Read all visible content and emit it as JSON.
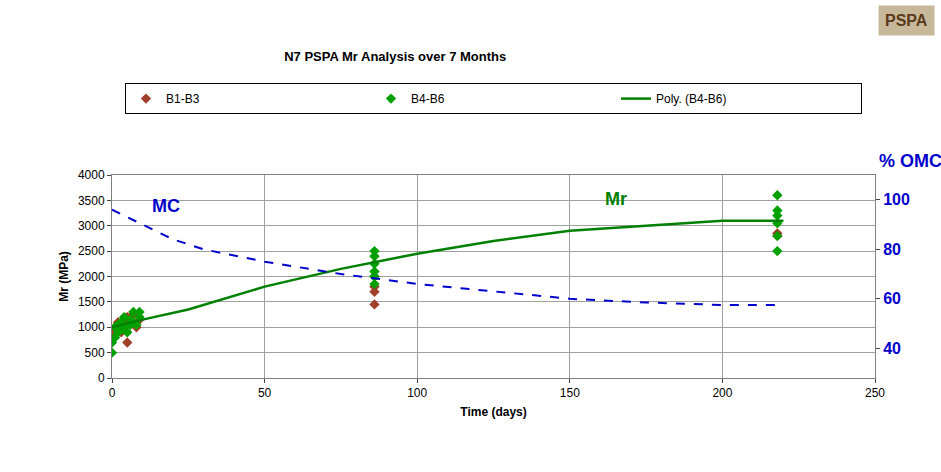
{
  "chart_data": {
    "type": "scatter",
    "title": "N7 PSPA Mr Analysis over 7 Months",
    "badge": "PSPA",
    "x_label": "Time (days)",
    "y_label": "Mr (MPa)",
    "y2_label": "% OMC",
    "xlim": [
      0,
      250
    ],
    "xticks": [
      0,
      50,
      100,
      150,
      200,
      250
    ],
    "ylim": [
      0,
      4000
    ],
    "yticks": [
      0,
      500,
      1000,
      1500,
      2000,
      2500,
      3000,
      3500,
      4000
    ],
    "y2lim": [
      28,
      110
    ],
    "y2ticks": [
      40,
      60,
      80,
      100
    ],
    "grid": true,
    "legend": "top",
    "series": [
      {
        "name": "B1-B3",
        "type": "scatter",
        "marker": "diamond",
        "color": "#a0402a",
        "x": [
          0,
          0,
          1,
          1,
          2,
          3,
          4,
          5,
          5,
          6,
          7,
          8,
          9,
          86,
          86,
          86,
          86,
          218,
          218
        ],
        "values": [
          800,
          900,
          950,
          1000,
          1100,
          900,
          1150,
          1200,
          700,
          1100,
          1250,
          1000,
          1150,
          1450,
          1700,
          1800,
          2000,
          2850,
          2800
        ]
      },
      {
        "name": "B4-B6",
        "type": "scatter",
        "marker": "diamond",
        "color": "#00a000",
        "x": [
          0,
          0,
          1,
          1,
          2,
          2,
          3,
          3,
          4,
          4,
          5,
          6,
          6,
          7,
          7,
          8,
          9,
          9,
          86,
          86,
          86,
          86,
          86,
          86,
          218,
          218,
          218,
          218,
          218,
          218
        ],
        "values": [
          500,
          700,
          800,
          1000,
          900,
          1050,
          950,
          1100,
          1000,
          1200,
          900,
          1050,
          1150,
          1100,
          1300,
          1050,
          1200,
          1300,
          1850,
          2000,
          2100,
          2250,
          2400,
          2500,
          2500,
          2800,
          3050,
          3200,
          3300,
          3600
        ]
      },
      {
        "name": "Poly. (B4-B6)",
        "type": "line",
        "line_style": "solid",
        "color": "#008000",
        "x": [
          0,
          10,
          25,
          50,
          75,
          100,
          125,
          150,
          175,
          200,
          220
        ],
        "values": [
          1000,
          1150,
          1350,
          1800,
          2150,
          2450,
          2700,
          2900,
          3000,
          3100,
          3100
        ]
      },
      {
        "name": "MC",
        "type": "line",
        "line_style": "dashed",
        "color": "#0000cc",
        "axis": "y2",
        "x": [
          0,
          10,
          20,
          30,
          50,
          75,
          100,
          125,
          150,
          175,
          200,
          220
        ],
        "values": [
          96,
          90,
          84,
          80,
          75,
          70,
          66,
          63,
          60,
          58.5,
          57.5,
          57.5
        ]
      }
    ],
    "annotations": [
      {
        "text": "Mr",
        "x": 165,
        "y": 3300,
        "color": "#008000"
      }
    ]
  }
}
